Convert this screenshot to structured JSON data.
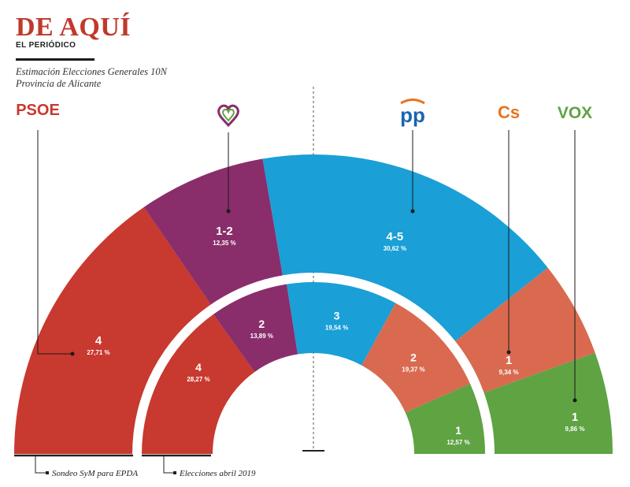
{
  "header": {
    "brand_title": "DE AQUÍ",
    "brand_subtitle": "EL PERIÓDICO",
    "subtitle_line1": "Estimación Elecciones Generales 10N",
    "subtitle_line2": "Provincia de Alicante"
  },
  "colors": {
    "psoe": "#c8392f",
    "compromis": "#8a2d6b",
    "pp": "#1a9fd6",
    "cs": "#d96a50",
    "vox": "#5fa343"
  },
  "party_logos": {
    "psoe": "PSOE",
    "compromis": "heart-logo-icon",
    "pp": "pp",
    "cs": "Cs",
    "vox": "VOX"
  },
  "chart_data": {
    "type": "parliament-semicircle",
    "outer_ring": {
      "name": "Sondeo SyM para EPDA",
      "segments": [
        {
          "party": "PSOE",
          "seats": "4",
          "percent": "27,71 %",
          "value": 27.71
        },
        {
          "party": "Compromís",
          "seats": "1-2",
          "percent": "12,35 %",
          "value": 12.35
        },
        {
          "party": "PP",
          "seats": "4-5",
          "percent": "30,62 %",
          "value": 30.62
        },
        {
          "party": "Cs",
          "seats": "1",
          "percent": "9,34 %",
          "value": 9.34
        },
        {
          "party": "VOX",
          "seats": "1",
          "percent": "9,86 %",
          "value": 9.86
        }
      ]
    },
    "inner_ring": {
      "name": "Elecciones abril 2019",
      "segments": [
        {
          "party": "PSOE",
          "seats": "4",
          "percent": "28,27 %",
          "value": 28.27
        },
        {
          "party": "Compromís",
          "seats": "2",
          "percent": "13,89 %",
          "value": 13.89
        },
        {
          "party": "PP",
          "seats": "3",
          "percent": "19,54 %",
          "value": 19.54
        },
        {
          "party": "Cs",
          "seats": "2",
          "percent": "19,37 %",
          "value": 19.37
        },
        {
          "party": "VOX",
          "seats": "1",
          "percent": "12,57 %",
          "value": 12.57
        }
      ]
    }
  }
}
